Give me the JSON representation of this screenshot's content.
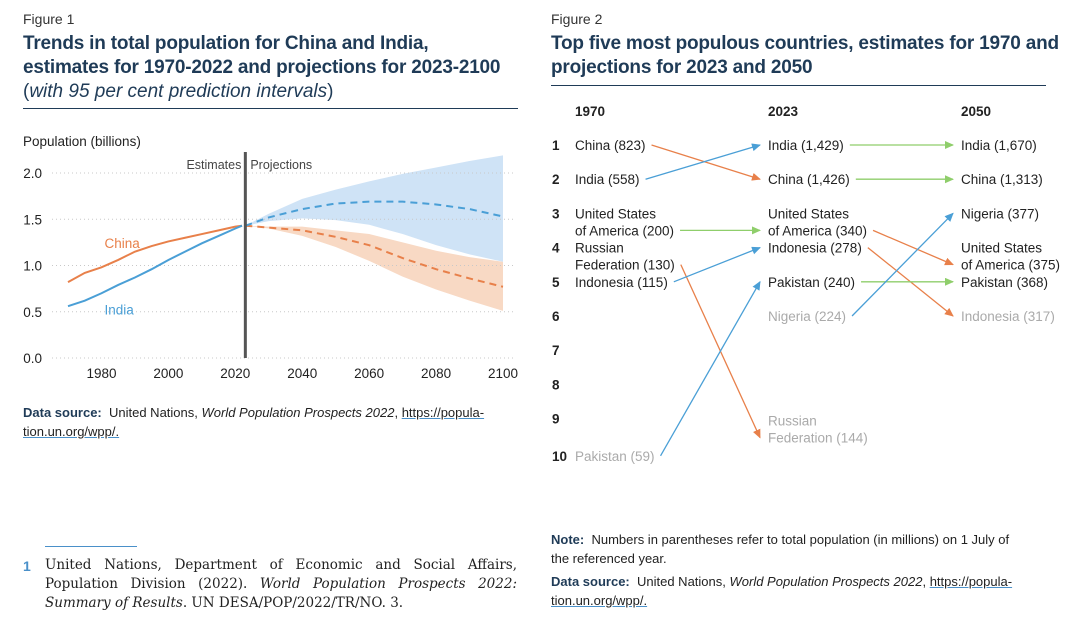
{
  "figure1": {
    "label": "Figure 1",
    "title_line1": "Trends in total population for China and India,",
    "title_line2": "estimates for 1970-2022 and projections for 2023-2100",
    "subtitle_open": "(",
    "subtitle_italic": "with 95 per cent prediction intervals",
    "subtitle_close": ")",
    "source_label": "Data source:",
    "source_text": "United Nations,",
    "source_italic": "World Population Prospects 2022",
    "source_url_line1": "https://popula-",
    "source_url_line2": "tion.un.org/wpp/.",
    "colors": {
      "china": "#e8804a",
      "india": "#4a9fd6",
      "china_band": "#f8d9c4",
      "india_band": "#cfe3f6"
    }
  },
  "chart_data": [
    {
      "type": "line",
      "ylabel": "Population (billions)",
      "xlim": [
        1970,
        2100
      ],
      "ylim": [
        0,
        2.0
      ],
      "xticks": [
        "1980",
        "2000",
        "2020",
        "2040",
        "2060",
        "2080",
        "2100"
      ],
      "yticks": [
        "0.0",
        "0.5",
        "1.0",
        "1.5",
        "2.0"
      ],
      "divider_year": 2023,
      "annotations": {
        "estimates": "Estimates",
        "projections": "Projections"
      },
      "grid": "horizontal-dotted",
      "series": [
        {
          "name": "China",
          "estimates": {
            "x": [
              1970,
              1975,
              1980,
              1985,
              1990,
              1995,
              2000,
              2005,
              2010,
              2015,
              2020,
              2022
            ],
            "y": [
              0.82,
              0.92,
              0.98,
              1.06,
              1.15,
              1.21,
              1.26,
              1.3,
              1.34,
              1.38,
              1.42,
              1.43
            ]
          },
          "projection": {
            "x": [
              2023,
              2030,
              2040,
              2050,
              2060,
              2070,
              2080,
              2090,
              2100
            ],
            "y": [
              1.43,
              1.41,
              1.38,
              1.31,
              1.22,
              1.08,
              0.96,
              0.86,
              0.77
            ]
          },
          "lower": [
            1.43,
            1.4,
            1.32,
            1.2,
            1.05,
            0.88,
            0.74,
            0.62,
            0.51
          ],
          "upper": [
            1.43,
            1.42,
            1.42,
            1.38,
            1.34,
            1.25,
            1.16,
            1.09,
            1.04
          ]
        },
        {
          "name": "India",
          "estimates": {
            "x": [
              1970,
              1975,
              1980,
              1985,
              1990,
              1995,
              2000,
              2005,
              2010,
              2015,
              2020,
              2022
            ],
            "y": [
              0.56,
              0.62,
              0.7,
              0.79,
              0.87,
              0.96,
              1.06,
              1.15,
              1.24,
              1.32,
              1.4,
              1.43
            ]
          },
          "projection": {
            "x": [
              2023,
              2030,
              2040,
              2050,
              2060,
              2070,
              2080,
              2090,
              2100
            ],
            "y": [
              1.43,
              1.52,
              1.61,
              1.67,
              1.69,
              1.69,
              1.66,
              1.61,
              1.53
            ]
          },
          "lower": [
            1.43,
            1.48,
            1.51,
            1.49,
            1.44,
            1.34,
            1.22,
            1.12,
            1.04
          ],
          "upper": [
            1.43,
            1.56,
            1.72,
            1.82,
            1.91,
            1.99,
            2.06,
            2.13,
            2.19
          ]
        }
      ]
    },
    {
      "type": "bump",
      "columns": [
        "1970",
        "2023",
        "2050"
      ],
      "ranks": [
        "1",
        "2",
        "3",
        "4",
        "5",
        "6",
        "7",
        "8",
        "9",
        "10"
      ],
      "entries": {
        "1970": [
          {
            "rank": 1,
            "line1": "China (823)",
            "line2": "",
            "country": "China",
            "value": 823
          },
          {
            "rank": 2,
            "line1": "India (558)",
            "line2": "",
            "country": "India",
            "value": 558
          },
          {
            "rank": 3,
            "line1": "United States",
            "line2": "of America (200)",
            "country": "United States of America",
            "value": 200
          },
          {
            "rank": 4,
            "line1": "Russian",
            "line2": "Federation (130)",
            "country": "Russian Federation",
            "value": 130
          },
          {
            "rank": 5,
            "line1": "Indonesia (115)",
            "line2": "",
            "country": "Indonesia",
            "value": 115
          },
          {
            "rank": 10,
            "line1": "Pakistan (59)",
            "line2": "",
            "country": "Pakistan",
            "value": 59,
            "muted": true
          }
        ],
        "2023": [
          {
            "rank": 1,
            "line1": "India (1,429)",
            "line2": "",
            "country": "India",
            "value": 1429
          },
          {
            "rank": 2,
            "line1": "China (1,426)",
            "line2": "",
            "country": "China",
            "value": 1426
          },
          {
            "rank": 3,
            "line1": "United States",
            "line2": "of America (340)",
            "country": "United States of America",
            "value": 340
          },
          {
            "rank": 4,
            "line1": "Indonesia (278)",
            "line2": "",
            "country": "Indonesia",
            "value": 278
          },
          {
            "rank": 5,
            "line1": "Pakistan (240)",
            "line2": "",
            "country": "Pakistan",
            "value": 240
          },
          {
            "rank": 6,
            "line1": "Nigeria (224)",
            "line2": "",
            "country": "Nigeria",
            "value": 224,
            "muted": true
          },
          {
            "rank": 9,
            "line1": "Russian",
            "line2": "Federation (144)",
            "country": "Russian Federation",
            "value": 144,
            "muted": true
          }
        ],
        "2050": [
          {
            "rank": 1,
            "line1": "India (1,670)",
            "line2": "",
            "country": "India",
            "value": 1670
          },
          {
            "rank": 2,
            "line1": "China (1,313)",
            "line2": "",
            "country": "China",
            "value": 1313
          },
          {
            "rank": 3,
            "line1": "Nigeria (377)",
            "line2": "",
            "country": "Nigeria",
            "value": 377
          },
          {
            "rank": 4,
            "line1": "United States",
            "line2": "of America (375)",
            "country": "United States of America",
            "value": 375
          },
          {
            "rank": 5,
            "line1": "Pakistan (368)",
            "line2": "",
            "country": "Pakistan",
            "value": 368
          },
          {
            "rank": 6,
            "line1": "Indonesia (317)",
            "line2": "",
            "country": "Indonesia",
            "value": 317,
            "muted": true
          }
        ]
      },
      "colors": {
        "up": "#4a9fd6",
        "down": "#e8804a",
        "same": "#8fce6b",
        "muted": "#aaaaaa"
      }
    }
  ],
  "figure2": {
    "label": "Figure 2",
    "title_line1": "Top five most populous countries, estimates for 1970 and",
    "title_line2": "projections for 2023 and 2050",
    "note_label": "Note:",
    "note_line1": "Numbers in parentheses refer to total population (in millions) on 1 July of",
    "note_line2": "the referenced year.",
    "source_label": "Data source:",
    "source_text": "United Nations,",
    "source_italic": "World Population Prospects 2022",
    "source_url_line1": "https://popula-",
    "source_url_line2": "tion.un.org/wpp/."
  },
  "footnote": {
    "number": "1",
    "text_a": "United Nations, Department of Economic and Social Affairs, Population Division (2022).",
    "text_italic": "World Population Prospects 2022: Summary of Results",
    "text_b": ". UN DESA/POP/2022/TR/NO. 3."
  }
}
